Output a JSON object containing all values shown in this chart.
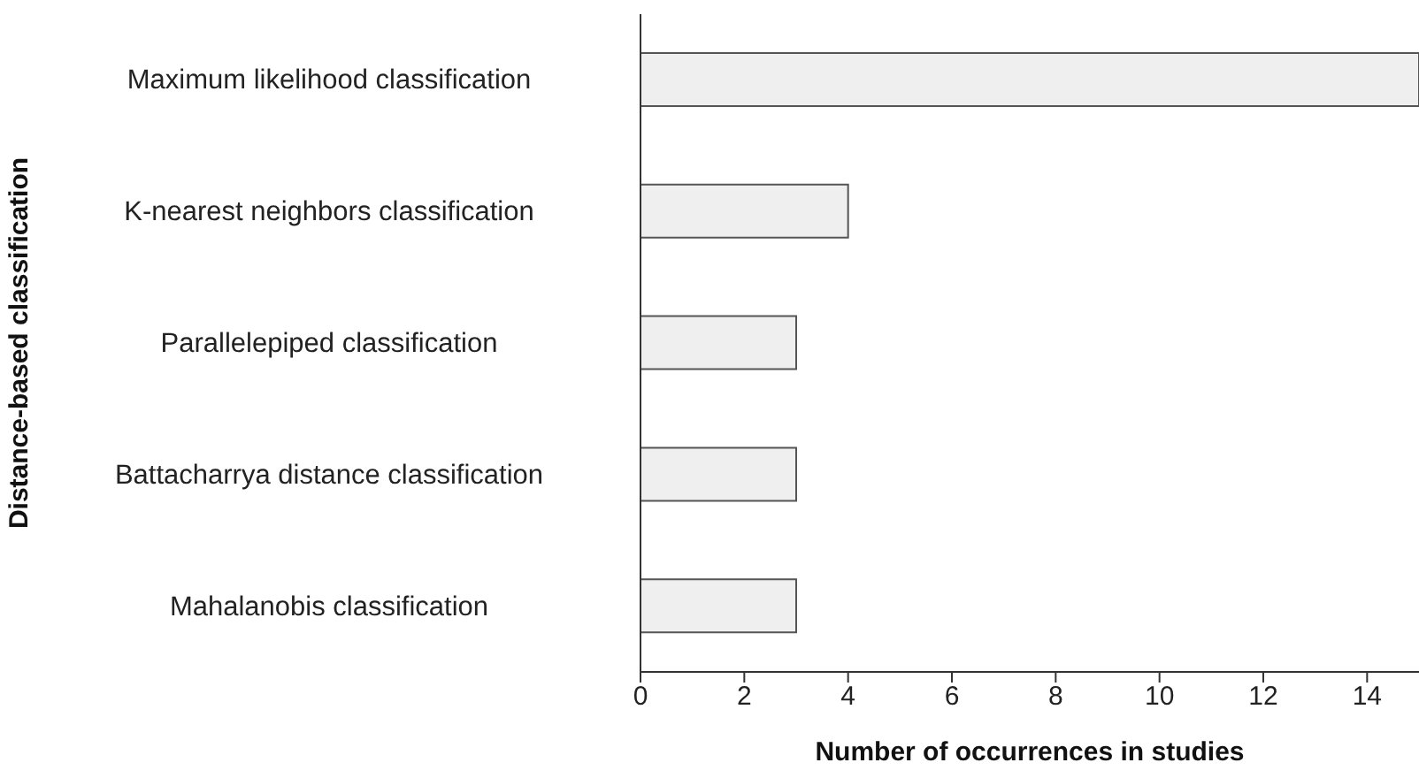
{
  "chart_data": {
    "type": "bar",
    "orientation": "horizontal",
    "xlabel": "Number of occurrences in studies",
    "ylabel": "Distance-based classification",
    "categories": [
      "Maximum likelihood classification",
      "K-nearest neighbors classification",
      "Parallelepiped classification",
      "Battacharrya distance classification",
      "Mahalanobis classification"
    ],
    "values": [
      15,
      4,
      3,
      3,
      3
    ],
    "color": "#efefef",
    "xlim": [
      0,
      15
    ],
    "xticks": [
      0,
      2,
      4,
      6,
      8,
      10,
      12,
      14
    ],
    "grid": false,
    "legend": false
  }
}
